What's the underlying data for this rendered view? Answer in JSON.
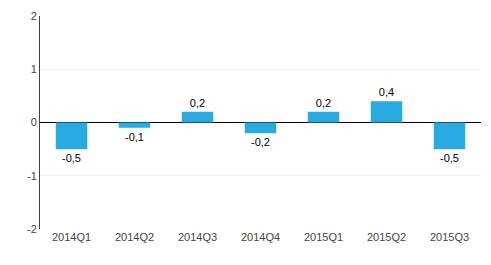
{
  "chart_data": {
    "type": "bar",
    "categories": [
      "2014Q1",
      "2014Q2",
      "2014Q3",
      "2014Q4",
      "2015Q1",
      "2015Q2",
      "2015Q3"
    ],
    "values": [
      -0.5,
      -0.1,
      0.2,
      -0.2,
      0.2,
      0.4,
      -0.5
    ],
    "value_labels": [
      "-0,5",
      "-0,1",
      "0,2",
      "-0,2",
      "0,2",
      "0,4",
      "-0,5"
    ],
    "color": "#29abe2",
    "ylim": [
      -2,
      2
    ],
    "yticks": [
      -2,
      -1,
      0,
      1,
      2
    ],
    "grid": true,
    "data_labels": true
  }
}
